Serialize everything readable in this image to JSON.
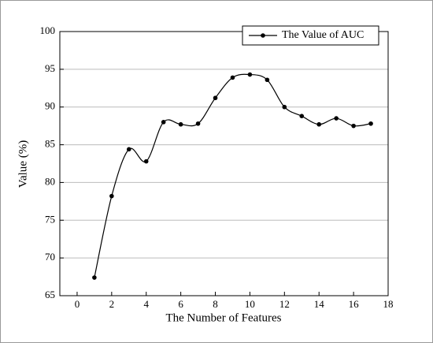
{
  "chart_data": {
    "type": "line",
    "x_label": "The Number of Features",
    "y_label": "Value (%)",
    "x": [
      1,
      2,
      3,
      4,
      5,
      6,
      7,
      8,
      9,
      10,
      11,
      12,
      13,
      14,
      15,
      16,
      17
    ],
    "series": [
      {
        "name": "The Value of AUC",
        "color": "#000000",
        "values": [
          67.4,
          78.2,
          84.4,
          82.8,
          88.0,
          87.7,
          87.8,
          91.2,
          93.9,
          94.3,
          93.6,
          90.0,
          88.8,
          87.7,
          88.5,
          87.5,
          87.8
        ]
      }
    ],
    "xlim": [
      -1,
      18
    ],
    "xticks": [
      0,
      2,
      4,
      6,
      8,
      10,
      12,
      14,
      16,
      18
    ],
    "ylim": [
      65,
      100
    ],
    "yticks": [
      65,
      70,
      75,
      80,
      85,
      90,
      95,
      100
    ],
    "grid": true,
    "smooth": true,
    "legend": "top-right"
  }
}
